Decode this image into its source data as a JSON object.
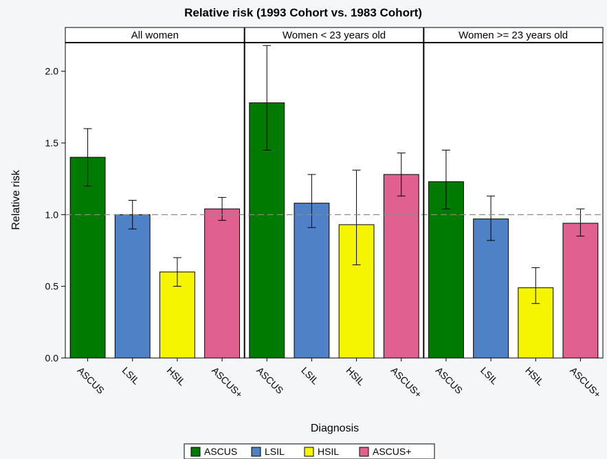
{
  "chart_data": {
    "type": "bar",
    "title": "Relative risk (1993 Cohort vs. 1983 Cohort)",
    "xlabel": "Diagnosis",
    "ylabel": "Relative risk",
    "ylim": [
      0,
      2.2
    ],
    "yticks": [
      "0.0",
      "0.5",
      "1.0",
      "1.5",
      "2.0"
    ],
    "reference_line": 1.0,
    "categories": [
      "ASCUS",
      "LSIL",
      "HSIL",
      "ASCUS+"
    ],
    "colors": [
      "#007a00",
      "#4f81c7",
      "#f5f500",
      "#e0608f"
    ],
    "panels": [
      {
        "label": "All women",
        "values": [
          1.4,
          1.0,
          0.6,
          1.04
        ],
        "ci_low": [
          1.2,
          0.9,
          0.5,
          0.96
        ],
        "ci_high": [
          1.6,
          1.1,
          0.7,
          1.12
        ]
      },
      {
        "label": "Women < 23 years old",
        "values": [
          1.78,
          1.08,
          0.93,
          1.28
        ],
        "ci_low": [
          1.45,
          0.91,
          0.65,
          1.13
        ],
        "ci_high": [
          2.18,
          1.28,
          1.31,
          1.43
        ]
      },
      {
        "label": "Women >= 23 years old",
        "values": [
          1.23,
          0.97,
          0.49,
          0.94
        ],
        "ci_low": [
          1.04,
          0.82,
          0.38,
          0.85
        ],
        "ci_high": [
          1.45,
          1.13,
          0.63,
          1.04
        ]
      }
    ],
    "legend": {
      "placement": "bottom",
      "entries": [
        "ASCUS",
        "LSIL",
        "HSIL",
        "ASCUS+"
      ]
    },
    "grid": false
  }
}
